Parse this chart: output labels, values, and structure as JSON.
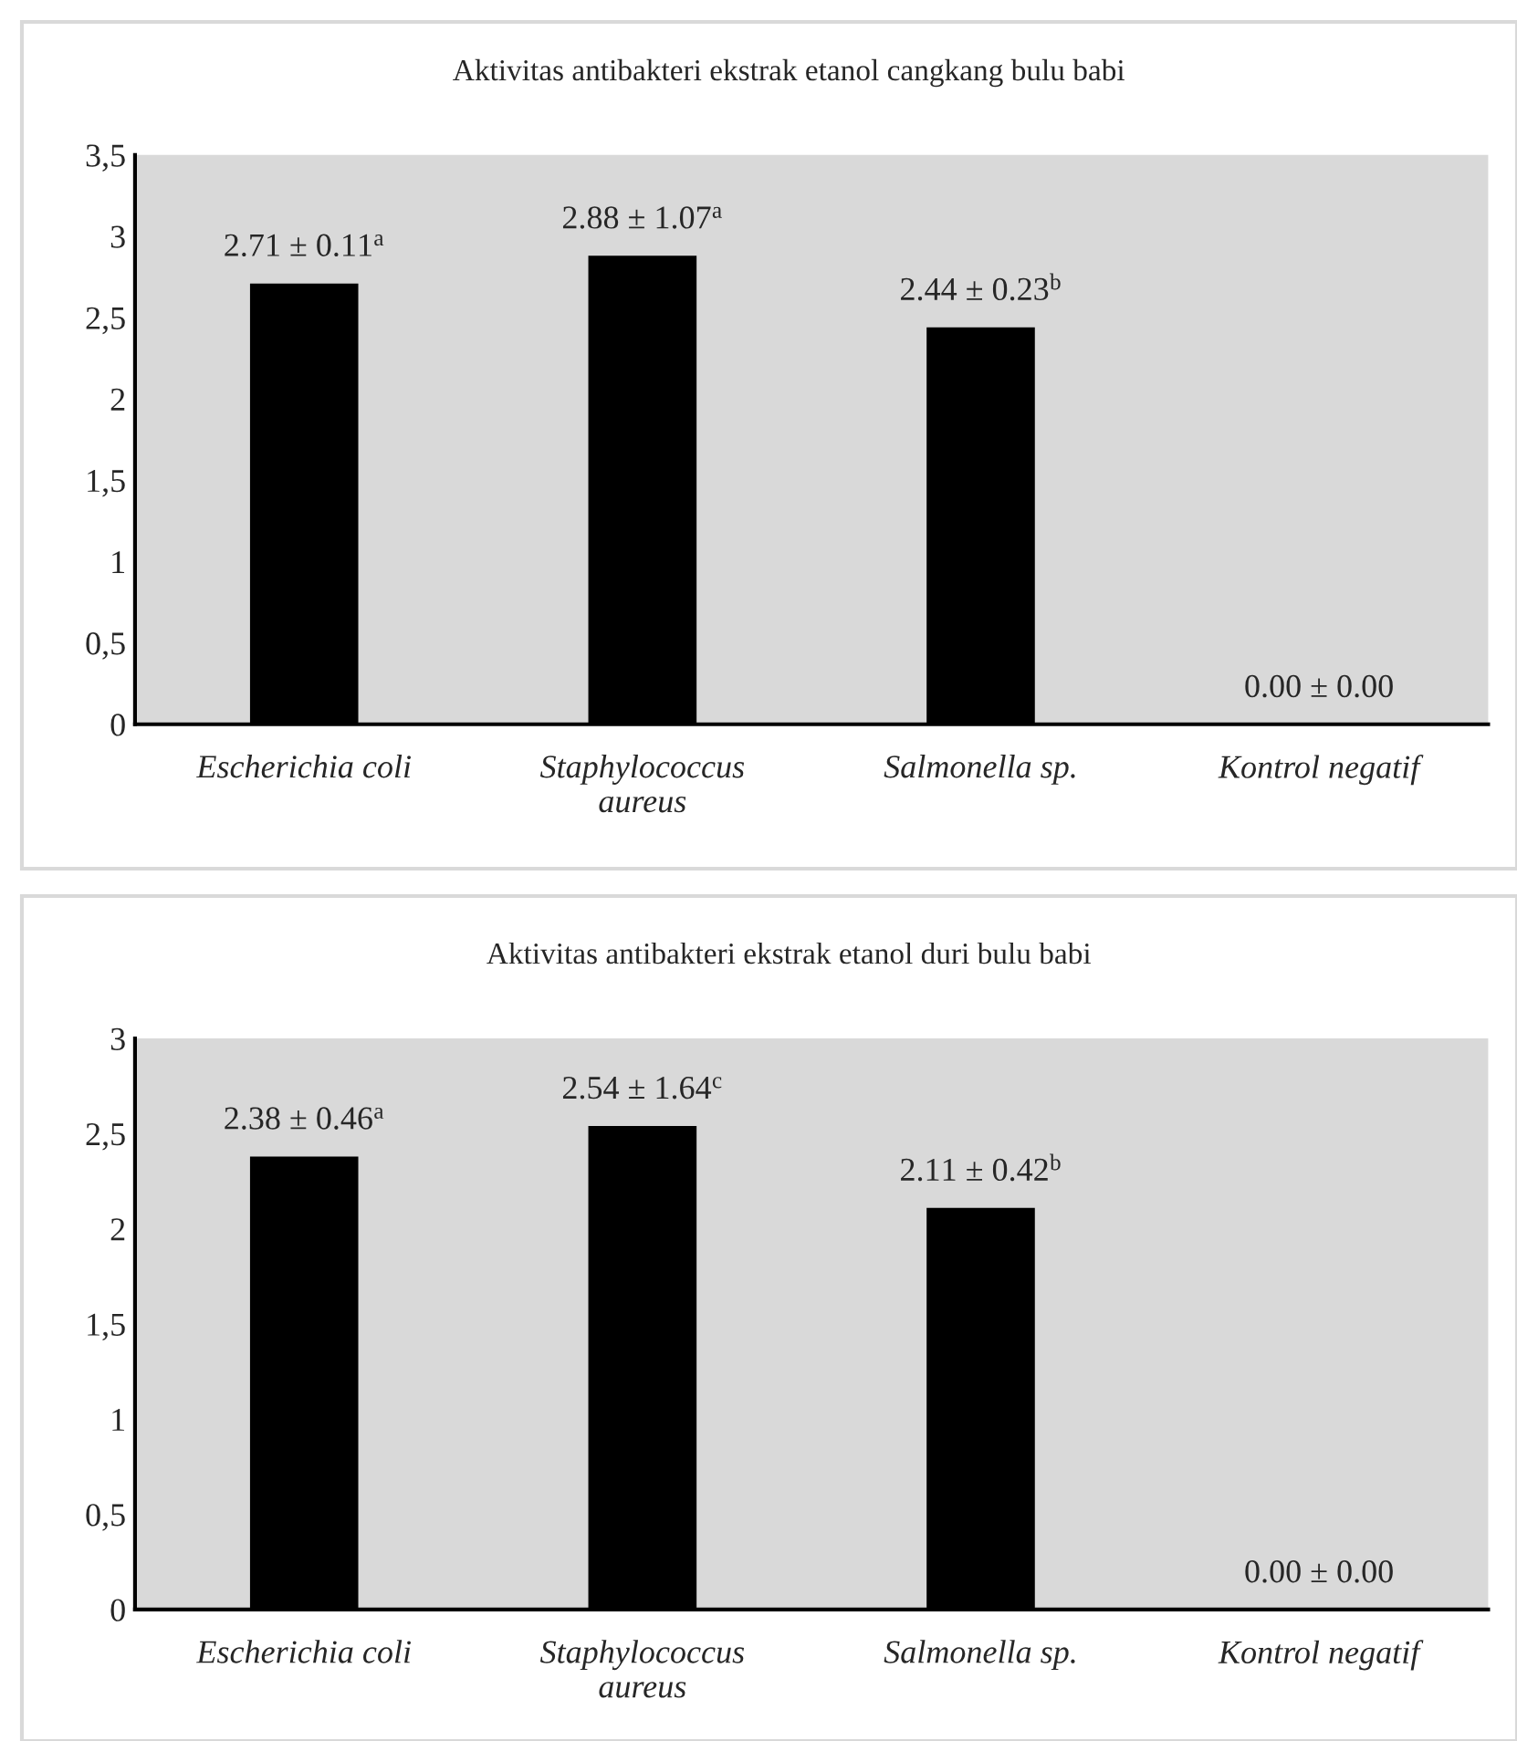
{
  "chart_data": [
    {
      "type": "bar",
      "title": "Aktivitas antibakteri ekstrak etanol cangkang bulu babi",
      "categories": [
        "Escherichia coli",
        "Staphylococcus\naureus",
        "Salmonella sp.",
        "Kontrol negatif"
      ],
      "values": [
        2.71,
        2.88,
        2.44,
        0
      ],
      "color": "#000000",
      "value_labels": [
        "2.71 ± 0.11$^{a}$",
        "2.88 ± 1.07$^{a}$",
        "2.44 ± 0.23$^{b}$",
        "0.00 ± 0.00"
      ],
      "ylim": [
        0,
        3.5
      ],
      "yticks": [
        {
          "value": 0,
          "label": "0"
        },
        {
          "value": 0.5,
          "label": "0,5"
        },
        {
          "value": 1,
          "label": "1"
        },
        {
          "value": 1.5,
          "label": "1,5"
        },
        {
          "value": 2,
          "label": "2"
        },
        {
          "value": 2.5,
          "label": "2,5"
        },
        {
          "value": 3,
          "label": "3"
        },
        {
          "value": 3.5,
          "label": "3,5"
        }
      ],
      "grid": false,
      "legend": false
    },
    {
      "type": "bar",
      "title": "Aktivitas antibakteri ekstrak etanol duri bulu babi",
      "categories": [
        "Escherichia coli",
        "Staphylococcus\naureus",
        "Salmonella sp.",
        "Kontrol negatif"
      ],
      "values": [
        2.38,
        2.54,
        2.11,
        0
      ],
      "color": "#000000",
      "value_labels": [
        "2.38 ± 0.46$^{a}$",
        "2.54 ± 1.64$^{c}$",
        "2.11 ± 0.42$^{b}$",
        "0.00 ± 0.00"
      ],
      "ylim": [
        0,
        3
      ],
      "yticks": [
        {
          "value": 0,
          "label": "0"
        },
        {
          "value": 0.5,
          "label": "0,5"
        },
        {
          "value": 1,
          "label": "1"
        },
        {
          "value": 1.5,
          "label": "1,5"
        },
        {
          "value": 2,
          "label": "2"
        },
        {
          "value": 2.5,
          "label": "2,5"
        },
        {
          "value": 3,
          "label": "3"
        }
      ],
      "grid": false,
      "legend": false
    }
  ]
}
